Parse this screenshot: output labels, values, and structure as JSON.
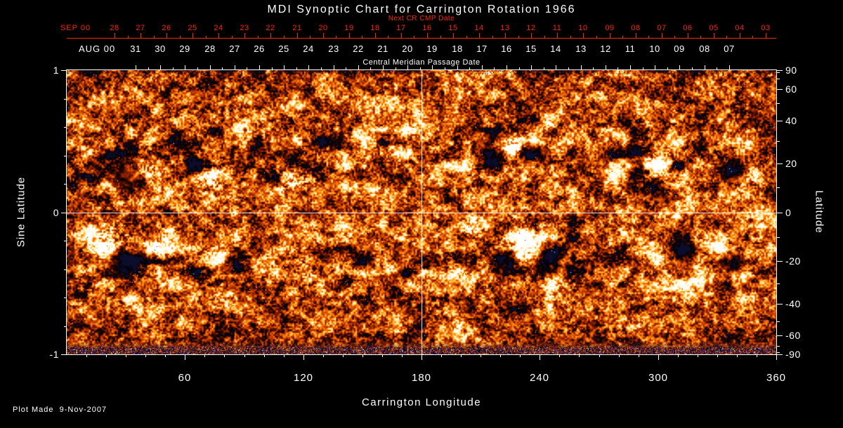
{
  "title": "MDI Synoptic Chart for Carrington Rotation 1966",
  "footer": "Plot Made  9-Nov-2007",
  "colors": {
    "background": "#000000",
    "foreground": "#ffffff",
    "next_cr_red": "#ff2600"
  },
  "chart_data": {
    "type": "heatmap",
    "xlabel": "Carrington Longitude",
    "x_range": [
      0,
      360
    ],
    "x_major_ticks": [
      60,
      120,
      180,
      240,
      300,
      360
    ],
    "x_minor_tick_step": 10,
    "ylabel_left": "Sine Latitude",
    "y_left_range": [
      -1,
      1
    ],
    "y_left_major_ticks": [
      1,
      0,
      -1
    ],
    "y_left_minor_ticks": [
      0.8,
      0.6,
      0.4,
      0.2,
      -0.2,
      -0.4,
      -0.6,
      -0.8
    ],
    "ylabel_right": "Latitude",
    "y_right_major_ticks": [
      90,
      60,
      40,
      20,
      0,
      -20,
      -40,
      -60,
      -90
    ],
    "y_right_minor_ticks": [
      80,
      70,
      50,
      30,
      10,
      -10,
      -30,
      -50,
      -70,
      -80
    ],
    "top_axis": {
      "month": "SEP 00",
      "label": "Next CR CMP Date",
      "days": [
        "28",
        "27",
        "26",
        "25",
        "24",
        "23",
        "22",
        "21",
        "20",
        "19",
        "18",
        "17",
        "16",
        "15",
        "14",
        "13",
        "12",
        "11",
        "10",
        "09",
        "08",
        "07",
        "06",
        "05",
        "04",
        "03"
      ]
    },
    "cmp_axis": {
      "month": "AUG 00",
      "label": "Central Meridian Passage Date",
      "days": [
        "31",
        "30",
        "29",
        "28",
        "27",
        "26",
        "25",
        "24",
        "23",
        "22",
        "21",
        "20",
        "19",
        "18",
        "17",
        "16",
        "15",
        "14",
        "13",
        "12",
        "11",
        "10",
        "09",
        "08",
        "07"
      ]
    },
    "reference_lines": {
      "longitude": 180,
      "sine_latitude": 0
    },
    "value_description": "SOHO/MDI line-of-sight photospheric magnetic field: white/yellow = positive polarity, black = negative polarity, orange mottle = quiet Sun, blue-speckled bottom band = poorly observed south polar zone",
    "palette": {
      "strong_negative": "#000000",
      "weak_negative": "#7a1b00",
      "quiet_sun": "#d05200",
      "weak_positive": "#ffae2c",
      "strong_positive": "#ffffff",
      "polar_noise_blue": "#181864"
    },
    "active_regions": [
      {
        "lon": 30,
        "lat": 15,
        "amp": -1.4,
        "sx": 7,
        "sy": 4.5
      },
      {
        "lon": 41,
        "lat": 17,
        "amp": 1.1,
        "sx": 4.5,
        "sy": 3
      },
      {
        "lon": 64,
        "lat": 17,
        "amp": -1.0,
        "sx": 4.5,
        "sy": 3
      },
      {
        "lon": 73,
        "lat": 15,
        "amp": 1.35,
        "sx": 6,
        "sy": 4
      },
      {
        "lon": 103,
        "lat": 13,
        "amp": -0.9,
        "sx": 4,
        "sy": 3
      },
      {
        "lon": 112,
        "lat": 14,
        "amp": 1.25,
        "sx": 5.5,
        "sy": 3.5
      },
      {
        "lon": 215,
        "lat": 25,
        "amp": -1.25,
        "sx": 6,
        "sy": 4
      },
      {
        "lon": 226,
        "lat": 27,
        "amp": 1.45,
        "sx": 5.5,
        "sy": 4
      },
      {
        "lon": 237,
        "lat": 24,
        "amp": -1.15,
        "sx": 5,
        "sy": 3.5
      },
      {
        "lon": 290,
        "lat": 19,
        "amp": -1.0,
        "sx": 4,
        "sy": 3
      },
      {
        "lon": 298,
        "lat": 20,
        "amp": 1.25,
        "sx": 5,
        "sy": 3.5
      },
      {
        "lon": 339,
        "lat": 17,
        "amp": -1.15,
        "sx": 5.5,
        "sy": 3.5
      },
      {
        "lon": 347,
        "lat": 15,
        "amp": 1.0,
        "sx": 4,
        "sy": 3
      },
      {
        "lon": 20,
        "lat": -12,
        "amp": 1.5,
        "sx": 6,
        "sy": 4
      },
      {
        "lon": 29,
        "lat": -20,
        "amp": -1.4,
        "sx": 6,
        "sy": 4.5
      },
      {
        "lon": 48,
        "lat": -14,
        "amp": 1.1,
        "sx": 4,
        "sy": 3
      },
      {
        "lon": 77,
        "lat": -18,
        "amp": 1.0,
        "sx": 4,
        "sy": 3
      },
      {
        "lon": 85,
        "lat": -21,
        "amp": -0.95,
        "sx": 4,
        "sy": 3
      },
      {
        "lon": 119,
        "lat": -26,
        "amp": 1.1,
        "sx": 5,
        "sy": 3
      },
      {
        "lon": 205,
        "lat": -6,
        "amp": 1.1,
        "sx": 4,
        "sy": 3
      },
      {
        "lon": 224,
        "lat": -20,
        "amp": -1.05,
        "sx": 5,
        "sy": 4
      },
      {
        "lon": 233,
        "lat": -14,
        "amp": 1.65,
        "sx": 7,
        "sy": 5
      },
      {
        "lon": 243,
        "lat": -19,
        "amp": -1.35,
        "sx": 6.5,
        "sy": 5
      },
      {
        "lon": 246,
        "lat": -31,
        "amp": 1.0,
        "sx": 3.5,
        "sy": 2.5
      },
      {
        "lon": 313,
        "lat": -15,
        "amp": -1.2,
        "sx": 5,
        "sy": 3.5
      },
      {
        "lon": 321,
        "lat": -12,
        "amp": 1.0,
        "sx": 4,
        "sy": 3
      },
      {
        "lon": 337,
        "lat": -22,
        "amp": -1.0,
        "sx": 5,
        "sy": 3.5
      }
    ]
  }
}
